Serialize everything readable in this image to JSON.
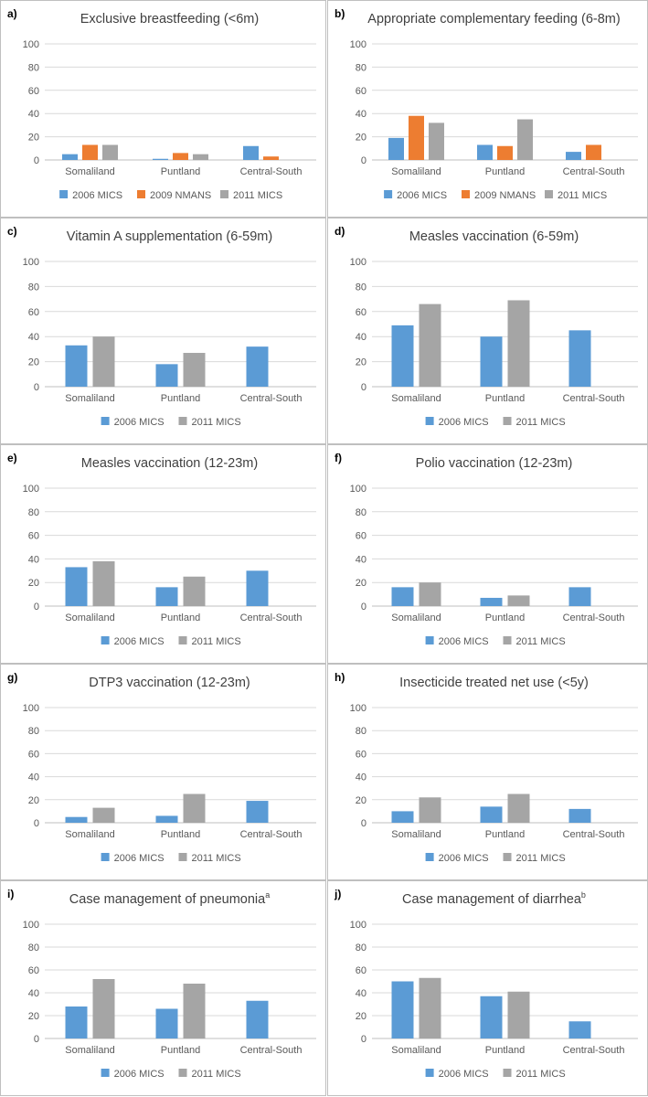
{
  "colors": {
    "2006 MICS": "#5b9bd5",
    "2009 NMANS": "#ed7d31",
    "2011 MICS": "#a5a5a5",
    "gridline": "#d9d9d9",
    "axis": "#bfbfbf"
  },
  "chart_data": [
    {
      "label": "a)",
      "title": "Exclusive breastfeeding (<6m)",
      "title_sup": "",
      "type": "bar",
      "categories": [
        "Somaliland",
        "Puntland",
        "Central-South"
      ],
      "series": [
        {
          "name": "2006 MICS",
          "values": [
            5,
            1,
            12
          ]
        },
        {
          "name": "2009 NMANS",
          "values": [
            13,
            6,
            3
          ]
        },
        {
          "name": "2011 MICS",
          "values": [
            13,
            5,
            null
          ]
        }
      ],
      "ylim": [
        0,
        100
      ],
      "yticks": [
        0,
        20,
        40,
        60,
        80,
        100
      ],
      "legend": "bottom"
    },
    {
      "label": "b)",
      "title": "Appropriate complementary feeding (6-8m)",
      "title_sup": "",
      "type": "bar",
      "categories": [
        "Somaliland",
        "Puntland",
        "Central-South"
      ],
      "series": [
        {
          "name": "2006 MICS",
          "values": [
            19,
            13,
            7
          ]
        },
        {
          "name": "2009 NMANS",
          "values": [
            38,
            12,
            13
          ]
        },
        {
          "name": "2011 MICS",
          "values": [
            32,
            35,
            null
          ]
        }
      ],
      "ylim": [
        0,
        100
      ],
      "yticks": [
        0,
        20,
        40,
        60,
        80,
        100
      ],
      "legend": "bottom"
    },
    {
      "label": "c)",
      "title": "Vitamin A supplementation (6-59m)",
      "title_sup": "",
      "type": "bar",
      "categories": [
        "Somaliland",
        "Puntland",
        "Central-South"
      ],
      "series": [
        {
          "name": "2006 MICS",
          "values": [
            33,
            18,
            32
          ]
        },
        {
          "name": "2011 MICS",
          "values": [
            40,
            27,
            null
          ]
        }
      ],
      "ylim": [
        0,
        100
      ],
      "yticks": [
        0,
        20,
        40,
        60,
        80,
        100
      ],
      "legend": "bottom"
    },
    {
      "label": "d)",
      "title": "Measles vaccination (6-59m)",
      "title_sup": "",
      "type": "bar",
      "categories": [
        "Somaliland",
        "Puntland",
        "Central-South"
      ],
      "series": [
        {
          "name": "2006 MICS",
          "values": [
            49,
            40,
            45
          ]
        },
        {
          "name": "2011 MICS",
          "values": [
            66,
            69,
            null
          ]
        }
      ],
      "ylim": [
        0,
        100
      ],
      "yticks": [
        0,
        20,
        40,
        60,
        80,
        100
      ],
      "legend": "bottom"
    },
    {
      "label": "e)",
      "title": "Measles vaccination (12-23m)",
      "title_sup": "",
      "type": "bar",
      "categories": [
        "Somaliland",
        "Puntland",
        "Central-South"
      ],
      "series": [
        {
          "name": "2006 MICS",
          "values": [
            33,
            16,
            30
          ]
        },
        {
          "name": "2011 MICS",
          "values": [
            38,
            25,
            null
          ]
        }
      ],
      "ylim": [
        0,
        100
      ],
      "yticks": [
        0,
        20,
        40,
        60,
        80,
        100
      ],
      "legend": "bottom"
    },
    {
      "label": "f)",
      "title": "Polio vaccination (12-23m)",
      "title_sup": "",
      "type": "bar",
      "categories": [
        "Somaliland",
        "Puntland",
        "Central-South"
      ],
      "series": [
        {
          "name": "2006 MICS",
          "values": [
            16,
            7,
            16
          ]
        },
        {
          "name": "2011 MICS",
          "values": [
            20,
            9,
            null
          ]
        }
      ],
      "ylim": [
        0,
        100
      ],
      "yticks": [
        0,
        20,
        40,
        60,
        80,
        100
      ],
      "legend": "bottom"
    },
    {
      "label": "g)",
      "title": "DTP3 vaccination (12-23m)",
      "title_sup": "",
      "type": "bar",
      "categories": [
        "Somaliland",
        "Puntland",
        "Central-South"
      ],
      "series": [
        {
          "name": "2006 MICS",
          "values": [
            5,
            6,
            19
          ]
        },
        {
          "name": "2011 MICS",
          "values": [
            13,
            25,
            null
          ]
        }
      ],
      "ylim": [
        0,
        100
      ],
      "yticks": [
        0,
        20,
        40,
        60,
        80,
        100
      ],
      "legend": "bottom"
    },
    {
      "label": "h)",
      "title": "Insecticide treated net use (<5y)",
      "title_sup": "",
      "type": "bar",
      "categories": [
        "Somaliland",
        "Puntland",
        "Central-South"
      ],
      "series": [
        {
          "name": "2006 MICS",
          "values": [
            10,
            14,
            12
          ]
        },
        {
          "name": "2011 MICS",
          "values": [
            22,
            25,
            null
          ]
        }
      ],
      "ylim": [
        0,
        100
      ],
      "yticks": [
        0,
        20,
        40,
        60,
        80,
        100
      ],
      "legend": "bottom"
    },
    {
      "label": "i)",
      "title": "Case management of pneumonia",
      "title_sup": "a",
      "type": "bar",
      "categories": [
        "Somaliland",
        "Puntland",
        "Central-South"
      ],
      "series": [
        {
          "name": "2006 MICS",
          "values": [
            28,
            26,
            33
          ]
        },
        {
          "name": "2011 MICS",
          "values": [
            52,
            48,
            null
          ]
        }
      ],
      "ylim": [
        0,
        100
      ],
      "yticks": [
        0,
        20,
        40,
        60,
        80,
        100
      ],
      "legend": "bottom"
    },
    {
      "label": "j)",
      "title": "Case management of diarrhea",
      "title_sup": "b",
      "type": "bar",
      "categories": [
        "Somaliland",
        "Puntland",
        "Central-South"
      ],
      "series": [
        {
          "name": "2006 MICS",
          "values": [
            50,
            37,
            15
          ]
        },
        {
          "name": "2011 MICS",
          "values": [
            53,
            41,
            null
          ]
        }
      ],
      "ylim": [
        0,
        100
      ],
      "yticks": [
        0,
        20,
        40,
        60,
        80,
        100
      ],
      "legend": "bottom"
    }
  ]
}
